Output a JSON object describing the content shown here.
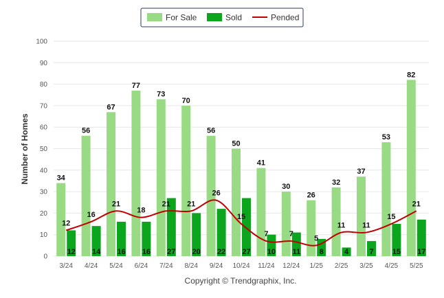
{
  "chart_data": {
    "type": "bar",
    "categories": [
      "3/24",
      "4/24",
      "5/24",
      "6/24",
      "7/24",
      "8/24",
      "9/24",
      "10/24",
      "11/24",
      "12/24",
      "1/25",
      "2/25",
      "3/25",
      "4/25",
      "5/25"
    ],
    "series": [
      {
        "name": "For Sale",
        "type": "bar",
        "color": "#99db85",
        "values": [
          34,
          56,
          67,
          77,
          73,
          70,
          56,
          50,
          41,
          30,
          26,
          32,
          37,
          53,
          82
        ]
      },
      {
        "name": "Sold",
        "type": "bar",
        "color": "#0ba51e",
        "values": [
          12,
          14,
          16,
          16,
          27,
          20,
          22,
          27,
          10,
          11,
          8,
          4,
          7,
          15,
          17
        ]
      },
      {
        "name": "Pended",
        "type": "line",
        "color": "#c00000",
        "values": [
          12,
          16,
          21,
          18,
          21,
          21,
          26,
          15,
          7,
          7,
          5,
          11,
          11,
          15,
          21
        ]
      }
    ],
    "ylabel": "Number of Homes",
    "xlabel": "",
    "ylim": [
      0,
      100
    ],
    "yticks": [
      0,
      10,
      20,
      30,
      40,
      50,
      60,
      70,
      80,
      90,
      100
    ],
    "grid": true,
    "legend_position": "top-center"
  },
  "footer": {
    "copyright": "Copyright © Trendgraphix, Inc."
  }
}
